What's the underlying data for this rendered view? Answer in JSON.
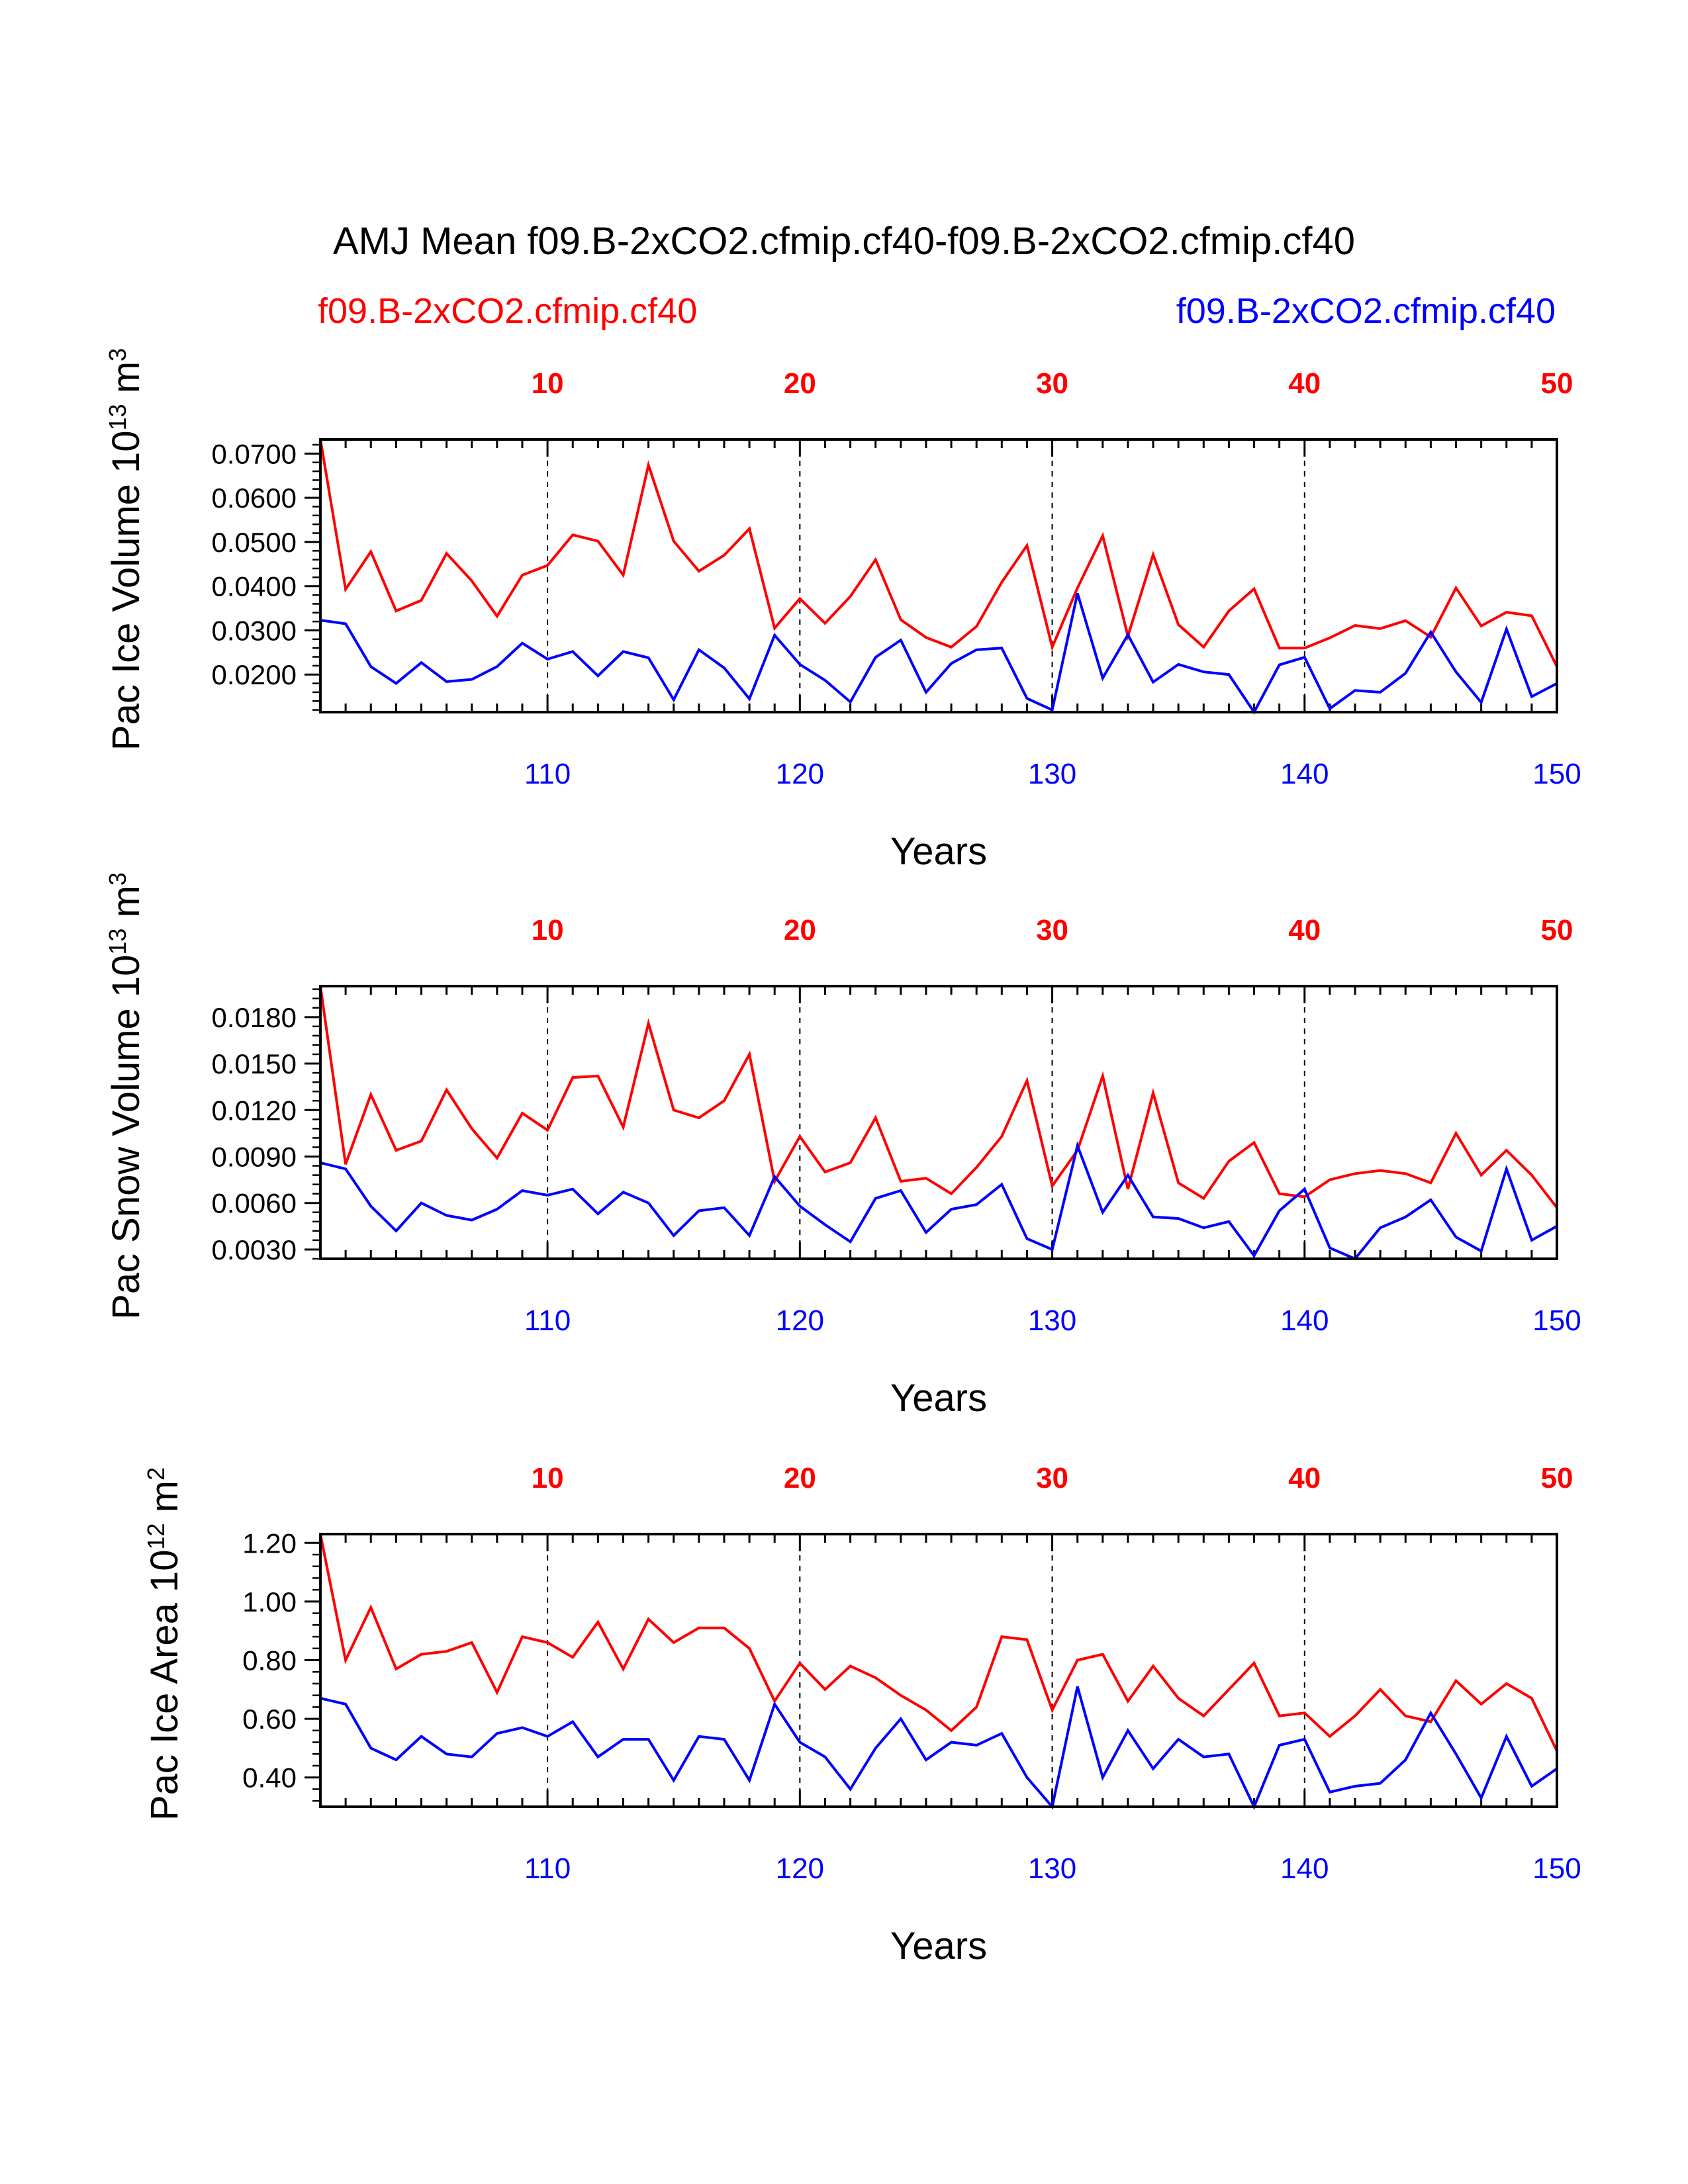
{
  "title": "AMJ Mean f09.B-2xCO2.cfmip.cf40-f09.B-2xCO2.cfmip.cf40",
  "legend": {
    "left_label": "f09.B-2xCO2.cfmip.cf40",
    "right_label": "f09.B-2xCO2.cfmip.cf40"
  },
  "colors": {
    "series1": "#ff0000",
    "series2": "#0000ff",
    "axis": "#000000"
  },
  "chart_data": [
    {
      "type": "line",
      "ylabel": "Pac Ice Volume",
      "yunit": {
        "base": "10",
        "exp": "13",
        "unit": "m",
        "unit_exp": "3"
      },
      "xlabel": "Years",
      "ylim": [
        0.0115,
        0.0732
      ],
      "yticks": [
        0.02,
        0.03,
        0.04,
        0.05,
        0.06,
        0.07
      ],
      "ytick_labels": [
        "0.0200",
        "0.0300",
        "0.0400",
        "0.0500",
        "0.0600",
        "0.0700"
      ],
      "yminor_step": 0.002,
      "xlim_bottom": [
        101,
        150
      ],
      "xticks_bottom": [
        110,
        120,
        130,
        140,
        150
      ],
      "xticks_top": [
        10,
        20,
        30,
        40,
        50
      ],
      "grid_x": [
        110,
        120,
        130,
        140
      ],
      "series": [
        {
          "name": "f09.B-2xCO2.cfmip.cf40",
          "color": "#ff0000",
          "values": [
            0.0732,
            0.0393,
            0.0478,
            0.0344,
            0.0368,
            0.0474,
            0.0412,
            0.0332,
            0.0425,
            0.0447,
            0.0516,
            0.0502,
            0.0425,
            0.0674,
            0.0502,
            0.0434,
            0.047,
            0.053,
            0.0305,
            0.0372,
            0.0316,
            0.0377,
            0.046,
            0.0324,
            0.0284,
            0.0262,
            0.0309,
            0.0409,
            0.0492,
            0.0262,
            0.0396,
            0.0514,
            0.0287,
            0.0471,
            0.0313,
            0.0262,
            0.0344,
            0.0394,
            0.026,
            0.026,
            0.0283,
            0.0311,
            0.0304,
            0.0322,
            0.0285,
            0.0396,
            0.031,
            0.0341,
            0.0333,
            0.0218
          ]
        },
        {
          "name": "f09.B-2xCO2.cfmip.cf40",
          "color": "#0000ff",
          "values": [
            0.0323,
            0.0315,
            0.0218,
            0.018,
            0.0227,
            0.0184,
            0.0189,
            0.0218,
            0.0271,
            0.0235,
            0.0252,
            0.0197,
            0.0252,
            0.0238,
            0.0143,
            0.0256,
            0.0215,
            0.0145,
            0.0289,
            0.0223,
            0.0187,
            0.0138,
            0.0239,
            0.0278,
            0.016,
            0.0225,
            0.0256,
            0.026,
            0.0146,
            0.012,
            0.0384,
            0.0192,
            0.029,
            0.0183,
            0.0223,
            0.0206,
            0.02,
            0.0115,
            0.0222,
            0.0239,
            0.0123,
            0.0164,
            0.016,
            0.0203,
            0.0296,
            0.0206,
            0.0137,
            0.0303,
            0.015,
            0.018
          ]
        }
      ]
    },
    {
      "type": "line",
      "ylabel": "Pac Snow Volume",
      "yunit": {
        "base": "10",
        "exp": "13",
        "unit": "m",
        "unit_exp": "3"
      },
      "xlabel": "Years",
      "ylim": [
        0.0024,
        0.02
      ],
      "yticks": [
        0.003,
        0.006,
        0.009,
        0.012,
        0.015,
        0.018
      ],
      "ytick_labels": [
        "0.0030",
        "0.0060",
        "0.0090",
        "0.0120",
        "0.0150",
        "0.0180"
      ],
      "yminor_step": 0.0006,
      "xlim_bottom": [
        101,
        150
      ],
      "xticks_bottom": [
        110,
        120,
        130,
        140,
        150
      ],
      "xticks_top": [
        10,
        20,
        30,
        40,
        50
      ],
      "grid_x": [
        110,
        120,
        130,
        140
      ],
      "series": [
        {
          "name": "f09.B-2xCO2.cfmip.cf40",
          "color": "#ff0000",
          "values": [
            0.02,
            0.0085,
            0.013,
            0.0094,
            0.01,
            0.0133,
            0.0108,
            0.0089,
            0.0118,
            0.0107,
            0.0141,
            0.0142,
            0.0109,
            0.0176,
            0.012,
            0.0115,
            0.0126,
            0.0156,
            0.0074,
            0.0103,
            0.008,
            0.0086,
            0.0115,
            0.0074,
            0.0076,
            0.0066,
            0.0083,
            0.0103,
            0.0139,
            0.0071,
            0.0094,
            0.0142,
            0.0069,
            0.0131,
            0.0073,
            0.0063,
            0.0087,
            0.0099,
            0.0066,
            0.0064,
            0.0075,
            0.0079,
            0.0081,
            0.0079,
            0.0073,
            0.0105,
            0.0078,
            0.0094,
            0.0078,
            0.0057
          ]
        },
        {
          "name": "f09.B-2xCO2.cfmip.cf40",
          "color": "#0000ff",
          "values": [
            0.0086,
            0.0082,
            0.0058,
            0.0042,
            0.006,
            0.0052,
            0.0049,
            0.0056,
            0.0068,
            0.0065,
            0.0069,
            0.0053,
            0.0067,
            0.006,
            0.0039,
            0.0055,
            0.0057,
            0.0039,
            0.0077,
            0.0058,
            0.0046,
            0.0035,
            0.0063,
            0.0068,
            0.0041,
            0.0056,
            0.0059,
            0.0072,
            0.0037,
            0.003,
            0.0097,
            0.0054,
            0.0078,
            0.0051,
            0.005,
            0.0044,
            0.0048,
            0.0026,
            0.0055,
            0.0069,
            0.0031,
            0.0024,
            0.0044,
            0.0051,
            0.0062,
            0.0038,
            0.0029,
            0.0082,
            0.0036,
            0.0045
          ]
        }
      ]
    },
    {
      "type": "line",
      "ylabel": "Pac Ice Area",
      "yunit": {
        "base": "10",
        "exp": "12",
        "unit": "m",
        "unit_exp": "2"
      },
      "xlabel": "Years",
      "ylim": [
        0.3,
        1.23
      ],
      "yticks": [
        0.4,
        0.6,
        0.8,
        1.0,
        1.2
      ],
      "ytick_labels": [
        "0.40",
        "0.60",
        "0.80",
        "1.00",
        "1.20"
      ],
      "yminor_step": 0.04,
      "xlim_bottom": [
        101,
        150
      ],
      "xticks_bottom": [
        110,
        120,
        130,
        140,
        150
      ],
      "xticks_top": [
        10,
        20,
        30,
        40,
        50
      ],
      "grid_x": [
        110,
        120,
        130,
        140
      ],
      "series": [
        {
          "name": "f09.B-2xCO2.cfmip.cf40",
          "color": "#ff0000",
          "values": [
            1.23,
            0.8,
            0.98,
            0.77,
            0.82,
            0.83,
            0.86,
            0.69,
            0.88,
            0.86,
            0.81,
            0.93,
            0.77,
            0.94,
            0.86,
            0.91,
            0.91,
            0.84,
            0.66,
            0.79,
            0.7,
            0.78,
            0.74,
            0.68,
            0.63,
            0.56,
            0.64,
            0.88,
            0.87,
            0.63,
            0.8,
            0.82,
            0.66,
            0.78,
            0.67,
            0.61,
            0.7,
            0.79,
            0.61,
            0.62,
            0.54,
            0.61,
            0.7,
            0.61,
            0.59,
            0.73,
            0.65,
            0.72,
            0.67,
            0.49
          ]
        },
        {
          "name": "f09.B-2xCO2.cfmip.cf40",
          "color": "#0000ff",
          "values": [
            0.67,
            0.65,
            0.5,
            0.46,
            0.54,
            0.48,
            0.47,
            0.55,
            0.57,
            0.54,
            0.59,
            0.47,
            0.53,
            0.53,
            0.39,
            0.54,
            0.53,
            0.39,
            0.65,
            0.52,
            0.47,
            0.36,
            0.5,
            0.6,
            0.46,
            0.52,
            0.51,
            0.55,
            0.4,
            0.3,
            0.71,
            0.4,
            0.56,
            0.43,
            0.53,
            0.47,
            0.48,
            0.3,
            0.51,
            0.53,
            0.35,
            0.37,
            0.38,
            0.46,
            0.62,
            0.48,
            0.33,
            0.54,
            0.37,
            0.43
          ]
        }
      ]
    }
  ]
}
